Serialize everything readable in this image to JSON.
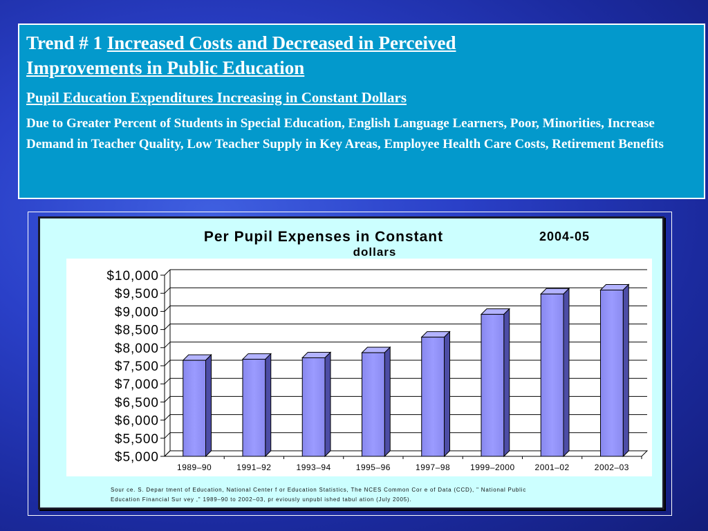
{
  "header": {
    "trend_prefix": "Trend # 1 ",
    "trend_title_line1": "Increased Costs and Decreased in Perceived",
    "trend_title_line2": "Improvements in  Public Education",
    "subtitle": " Pupil Education Expenditures Increasing in Constant  Dollars",
    "body": "Due to Greater Percent of Students in Special Education, English Language Learners, Poor,  Minorities, Increase Demand in Teacher Quality, Low Teacher Supply in Key Areas, Employee Health Care Costs, Retirement Benefits"
  },
  "chart_data": {
    "type": "bar",
    "title_main": "Per Pupil Expenses in Constant",
    "title_year": "2004-05",
    "title_line2": "dollars",
    "categories": [
      "1989–90",
      "1991–92",
      "1993–94",
      "1995–96",
      "1997–98",
      "1999–2000",
      "2001–02",
      "2002–03"
    ],
    "values": [
      7650,
      7680,
      7720,
      7860,
      8290,
      8920,
      9480,
      9590
    ],
    "ylim": [
      5000,
      10000
    ],
    "ytick_step": 500,
    "ytick_labels": [
      "$10,000",
      "$9,500",
      "$9,000",
      "$8,500",
      "$8,000",
      "$7,500",
      "$7,000",
      "$6,500",
      "$6,000",
      "$5,500",
      "$5,000"
    ],
    "grid": true,
    "legend": "none",
    "bar_color": "#9999ff",
    "source_line1": "Sour ce. S. Depar tment of  Education, National Center  f or  Education Statistics, The NCES Common Cor e of  Data (CCD), \" National Public",
    "source_line2": "Education Financial Sur vey ,\"  1989–90 to 2002–03, pr eviously  unpubl ished tabul ation (July  2005)."
  }
}
